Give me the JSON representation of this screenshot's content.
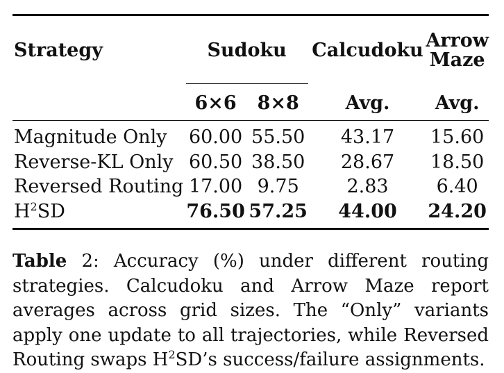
{
  "table": {
    "header": {
      "strategy": "Strategy",
      "sudoku": "Sudoku",
      "calcudoku": "Calcudoku",
      "arrow_maze_line1": "Arrow",
      "arrow_maze_line2": "Maze",
      "sub": [
        "6×6",
        "8×8",
        "Avg.",
        "Avg."
      ]
    },
    "rows": [
      {
        "strategy": "Magnitude Only",
        "values": [
          "60.00",
          "55.50",
          "43.17",
          "15.60"
        ]
      },
      {
        "strategy": "Reverse-KL Only",
        "values": [
          "60.50",
          "38.50",
          "28.67",
          "18.50"
        ]
      },
      {
        "strategy": "Reversed Routing",
        "values": [
          "17.00",
          "9.75",
          "2.83",
          "6.40"
        ]
      },
      {
        "strategy_base": "H",
        "strategy_sup": "2",
        "strategy_rest": "SD",
        "values": [
          "76.50",
          "57.25",
          "44.00",
          "24.20"
        ]
      }
    ]
  },
  "caption": {
    "label": "Table",
    "number": " 2",
    "text_part1": ": Accuracy (%) under different routing strategies. Calcudoku and Arrow Maze report averages across grid sizes. The “Only” variants apply one update to all trajectories, while Reversed Routing swaps ",
    "h": "H",
    "sup": "2",
    "text_part2": "SD’s success/failure assignments."
  }
}
